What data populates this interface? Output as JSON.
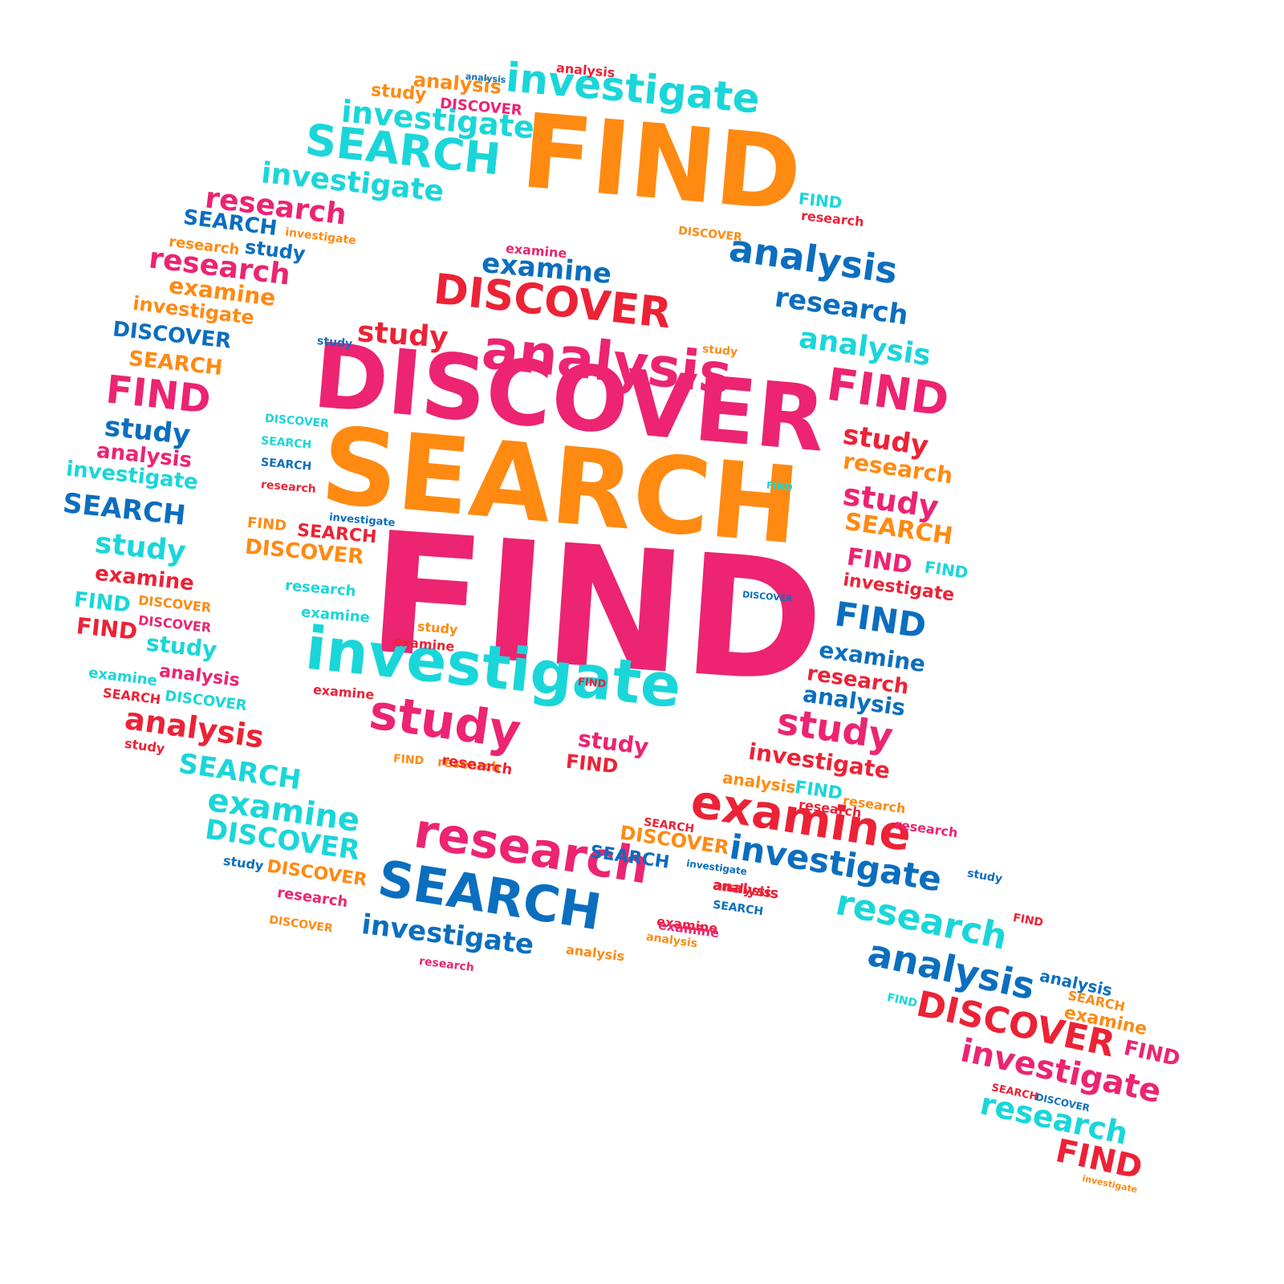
{
  "palette": {
    "pink": "#ec2472",
    "orange": "#ff8a12",
    "cyan": "#1ad6d9",
    "blue": "#0b6ebf",
    "red": "#ec2236"
  },
  "words": [
    {
      "text": "FIND",
      "color": "pink"
    },
    {
      "text": "SEARCH",
      "color": "orange"
    },
    {
      "text": "DISCOVER",
      "color": "pink"
    },
    {
      "text": "investigate",
      "color": "cyan"
    },
    {
      "text": "analysis",
      "color": "pink"
    },
    {
      "text": "study",
      "color": "pink"
    },
    {
      "text": "DISCOVER",
      "color": "red"
    },
    {
      "text": "examine",
      "color": "blue"
    },
    {
      "text": "study",
      "color": "red"
    },
    {
      "text": "study",
      "color": "pink"
    },
    {
      "text": "FIND",
      "color": "red"
    },
    {
      "text": "DISCOVER",
      "color": "orange"
    },
    {
      "text": "FIND",
      "color": "orange"
    },
    {
      "text": "SEARCH",
      "color": "red"
    },
    {
      "text": "examine",
      "color": "red"
    },
    {
      "text": "research",
      "color": "cyan"
    },
    {
      "text": "examine",
      "color": "cyan"
    },
    {
      "text": "examine",
      "color": "red"
    },
    {
      "text": "study",
      "color": "orange"
    },
    {
      "text": "study",
      "color": "blue"
    },
    {
      "text": "FIND",
      "color": "red"
    },
    {
      "text": "FIND",
      "color": "orange"
    },
    {
      "text": "research",
      "color": "orange"
    },
    {
      "text": "SEARCH",
      "color": "cyan"
    },
    {
      "text": "DISCOVER",
      "color": "cyan"
    },
    {
      "text": "SEARCH",
      "color": "blue"
    },
    {
      "text": "research",
      "color": "red"
    },
    {
      "text": "FIND",
      "color": "cyan"
    },
    {
      "text": "investigate",
      "color": "blue"
    },
    {
      "text": "DISCOVER",
      "color": "blue"
    },
    {
      "text": "study",
      "color": "orange"
    },
    {
      "text": "examine",
      "color": "pink"
    },
    {
      "text": "FIND",
      "color": "orange"
    },
    {
      "text": "investigate",
      "color": "cyan"
    },
    {
      "text": "investigate",
      "color": "cyan"
    },
    {
      "text": "SEARCH",
      "color": "cyan"
    },
    {
      "text": "analysis",
      "color": "orange"
    },
    {
      "text": "study",
      "color": "orange"
    },
    {
      "text": "DISCOVER",
      "color": "pink"
    },
    {
      "text": "analysis",
      "color": "red"
    },
    {
      "text": "analysis",
      "color": "blue"
    },
    {
      "text": "investigate",
      "color": "cyan"
    },
    {
      "text": "research",
      "color": "pink"
    },
    {
      "text": "SEARCH",
      "color": "blue"
    },
    {
      "text": "research",
      "color": "pink"
    },
    {
      "text": "study",
      "color": "blue"
    },
    {
      "text": "research",
      "color": "orange"
    },
    {
      "text": "investigate",
      "color": "orange"
    },
    {
      "text": "examine",
      "color": "orange"
    },
    {
      "text": "investigate",
      "color": "orange"
    },
    {
      "text": "DISCOVER",
      "color": "blue"
    },
    {
      "text": "SEARCH",
      "color": "orange"
    },
    {
      "text": "FIND",
      "color": "pink"
    },
    {
      "text": "study",
      "color": "blue"
    },
    {
      "text": "analysis",
      "color": "pink"
    },
    {
      "text": "investigate",
      "color": "cyan"
    },
    {
      "text": "SEARCH",
      "color": "blue"
    },
    {
      "text": "study",
      "color": "cyan"
    },
    {
      "text": "examine",
      "color": "red"
    },
    {
      "text": "FIND",
      "color": "cyan"
    },
    {
      "text": "DISCOVER",
      "color": "orange"
    },
    {
      "text": "FIND",
      "color": "red"
    },
    {
      "text": "DISCOVER",
      "color": "pink"
    },
    {
      "text": "study",
      "color": "cyan"
    },
    {
      "text": "analysis",
      "color": "pink"
    },
    {
      "text": "examine",
      "color": "cyan"
    },
    {
      "text": "SEARCH",
      "color": "red"
    },
    {
      "text": "DISCOVER",
      "color": "cyan"
    },
    {
      "text": "analysis",
      "color": "red"
    },
    {
      "text": "study",
      "color": "red"
    },
    {
      "text": "SEARCH",
      "color": "cyan"
    },
    {
      "text": "examine",
      "color": "cyan"
    },
    {
      "text": "DISCOVER",
      "color": "cyan"
    },
    {
      "text": "study",
      "color": "blue"
    },
    {
      "text": "DISCOVER",
      "color": "orange"
    },
    {
      "text": "research",
      "color": "pink"
    },
    {
      "text": "research",
      "color": "pink"
    },
    {
      "text": "SEARCH",
      "color": "blue"
    },
    {
      "text": "investigate",
      "color": "blue"
    },
    {
      "text": "analysis",
      "color": "orange"
    },
    {
      "text": "examine",
      "color": "red"
    },
    {
      "text": "research",
      "color": "pink"
    },
    {
      "text": "DISCOVER",
      "color": "orange"
    },
    {
      "text": "research",
      "color": "red"
    },
    {
      "text": "analysis",
      "color": "red"
    },
    {
      "text": "FIND",
      "color": "cyan"
    },
    {
      "text": "research",
      "color": "red"
    },
    {
      "text": "DISCOVER",
      "color": "orange"
    },
    {
      "text": "analysis",
      "color": "blue"
    },
    {
      "text": "research",
      "color": "blue"
    },
    {
      "text": "analysis",
      "color": "cyan"
    },
    {
      "text": "FIND",
      "color": "pink"
    },
    {
      "text": "study",
      "color": "red"
    },
    {
      "text": "research",
      "color": "orange"
    },
    {
      "text": "study",
      "color": "pink"
    },
    {
      "text": "SEARCH",
      "color": "orange"
    },
    {
      "text": "FIND",
      "color": "pink"
    },
    {
      "text": "FIND",
      "color": "cyan"
    },
    {
      "text": "investigate",
      "color": "red"
    },
    {
      "text": "FIND",
      "color": "blue"
    },
    {
      "text": "examine",
      "color": "blue"
    },
    {
      "text": "research",
      "color": "red"
    },
    {
      "text": "analysis",
      "color": "blue"
    },
    {
      "text": "study",
      "color": "pink"
    },
    {
      "text": "investigate",
      "color": "red"
    },
    {
      "text": "analysis",
      "color": "orange"
    },
    {
      "text": "FIND",
      "color": "cyan"
    },
    {
      "text": "examine",
      "color": "red"
    },
    {
      "text": "research",
      "color": "orange"
    },
    {
      "text": "research",
      "color": "red"
    },
    {
      "text": "SEARCH",
      "color": "red"
    },
    {
      "text": "SEARCH",
      "color": "blue"
    },
    {
      "text": "DISCOVER",
      "color": "orange"
    },
    {
      "text": "investigate",
      "color": "blue"
    },
    {
      "text": "analysis",
      "color": "red"
    },
    {
      "text": "SEARCH",
      "color": "blue"
    },
    {
      "text": "examine",
      "color": "pink"
    },
    {
      "text": "investigate",
      "color": "blue"
    },
    {
      "text": "analysis",
      "color": "orange"
    },
    {
      "text": "research",
      "color": "pink"
    },
    {
      "text": "research",
      "color": "cyan"
    },
    {
      "text": "analysis",
      "color": "blue"
    },
    {
      "text": "DISCOVER",
      "color": "red"
    },
    {
      "text": "investigate",
      "color": "pink"
    },
    {
      "text": "research",
      "color": "cyan"
    },
    {
      "text": "FIND",
      "color": "red"
    },
    {
      "text": "FIND",
      "color": "pink"
    },
    {
      "text": "study",
      "color": "blue"
    },
    {
      "text": "FIND",
      "color": "red"
    },
    {
      "text": "analysis",
      "color": "blue"
    },
    {
      "text": "SEARCH",
      "color": "orange"
    },
    {
      "text": "examine",
      "color": "orange"
    },
    {
      "text": "FIND",
      "color": "cyan"
    },
    {
      "text": "SEARCH",
      "color": "red"
    },
    {
      "text": "DISCOVER",
      "color": "blue"
    },
    {
      "text": "investigate",
      "color": "orange"
    }
  ]
}
